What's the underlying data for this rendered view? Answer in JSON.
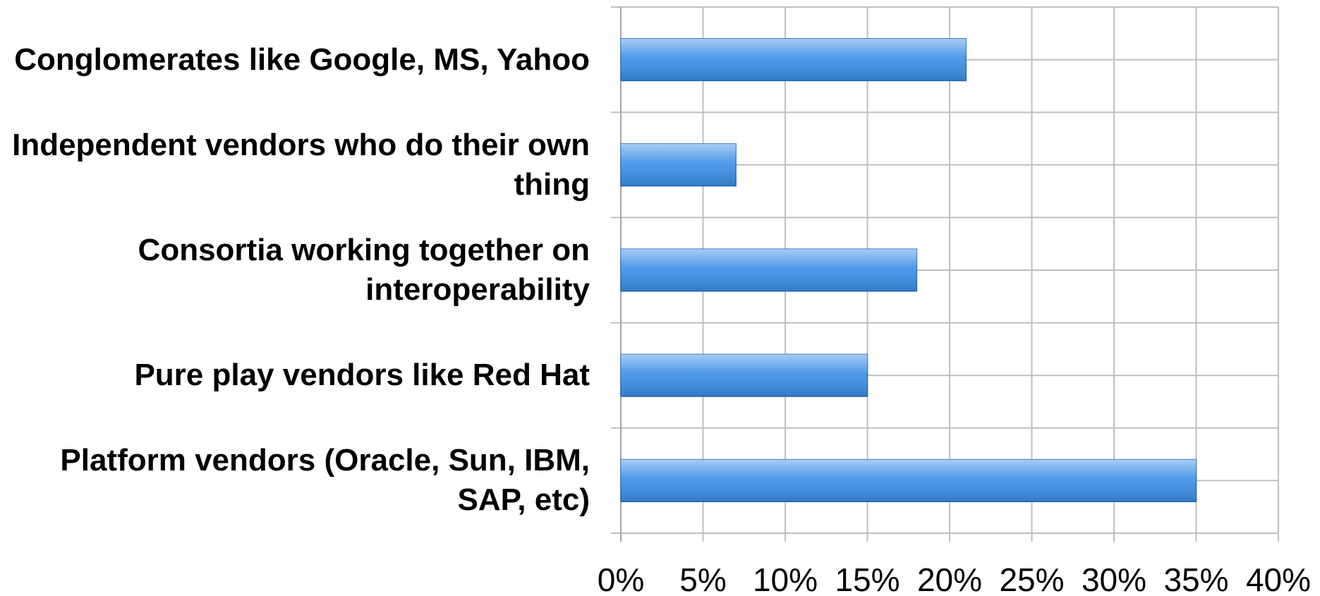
{
  "chart_data": {
    "type": "bar",
    "orientation": "horizontal",
    "categories": [
      "Conglomerates like Google, MS, Yahoo",
      "Independent vendors who do their own thing",
      "Consortia working together on interoperability",
      "Pure play vendors like Red Hat",
      "Platform vendors (Oracle, Sun, IBM, SAP, etc)"
    ],
    "values": [
      21,
      7,
      18,
      15,
      35
    ],
    "color": "#3d8fe8",
    "xlim": [
      0,
      40
    ],
    "xticks": [
      {
        "value": 0,
        "label": "0%"
      },
      {
        "value": 5,
        "label": "5%"
      },
      {
        "value": 10,
        "label": "10%"
      },
      {
        "value": 15,
        "label": "15%"
      },
      {
        "value": 20,
        "label": "20%"
      },
      {
        "value": 25,
        "label": "25%"
      },
      {
        "value": 30,
        "label": "30%"
      },
      {
        "value": 35,
        "label": "35%"
      },
      {
        "value": 40,
        "label": "40%"
      }
    ],
    "grid": true
  }
}
